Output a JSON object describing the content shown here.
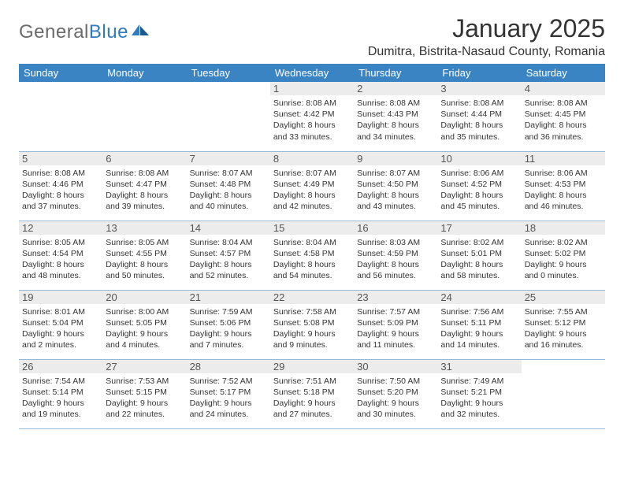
{
  "logo": {
    "text1": "General",
    "text2": "Blue"
  },
  "title": "January 2025",
  "location": "Dumitra, Bistrita-Nasaud County, Romania",
  "colors": {
    "header_bg": "#3b84c4",
    "header_text": "#ffffff",
    "grid_line": "#93b9d9",
    "daynum_bg": "#ececec",
    "daynum_text": "#555555",
    "body_text": "#333333",
    "logo_gray": "#6a6a6a",
    "logo_blue": "#2f7ac0"
  },
  "weekdays": [
    "Sunday",
    "Monday",
    "Tuesday",
    "Wednesday",
    "Thursday",
    "Friday",
    "Saturday"
  ],
  "weeks": [
    [
      {
        "day": "",
        "sunrise": "",
        "sunset": "",
        "daylight_l1": "",
        "daylight_l2": ""
      },
      {
        "day": "",
        "sunrise": "",
        "sunset": "",
        "daylight_l1": "",
        "daylight_l2": ""
      },
      {
        "day": "",
        "sunrise": "",
        "sunset": "",
        "daylight_l1": "",
        "daylight_l2": ""
      },
      {
        "day": "1",
        "sunrise": "Sunrise: 8:08 AM",
        "sunset": "Sunset: 4:42 PM",
        "daylight_l1": "Daylight: 8 hours",
        "daylight_l2": "and 33 minutes."
      },
      {
        "day": "2",
        "sunrise": "Sunrise: 8:08 AM",
        "sunset": "Sunset: 4:43 PM",
        "daylight_l1": "Daylight: 8 hours",
        "daylight_l2": "and 34 minutes."
      },
      {
        "day": "3",
        "sunrise": "Sunrise: 8:08 AM",
        "sunset": "Sunset: 4:44 PM",
        "daylight_l1": "Daylight: 8 hours",
        "daylight_l2": "and 35 minutes."
      },
      {
        "day": "4",
        "sunrise": "Sunrise: 8:08 AM",
        "sunset": "Sunset: 4:45 PM",
        "daylight_l1": "Daylight: 8 hours",
        "daylight_l2": "and 36 minutes."
      }
    ],
    [
      {
        "day": "5",
        "sunrise": "Sunrise: 8:08 AM",
        "sunset": "Sunset: 4:46 PM",
        "daylight_l1": "Daylight: 8 hours",
        "daylight_l2": "and 37 minutes."
      },
      {
        "day": "6",
        "sunrise": "Sunrise: 8:08 AM",
        "sunset": "Sunset: 4:47 PM",
        "daylight_l1": "Daylight: 8 hours",
        "daylight_l2": "and 39 minutes."
      },
      {
        "day": "7",
        "sunrise": "Sunrise: 8:07 AM",
        "sunset": "Sunset: 4:48 PM",
        "daylight_l1": "Daylight: 8 hours",
        "daylight_l2": "and 40 minutes."
      },
      {
        "day": "8",
        "sunrise": "Sunrise: 8:07 AM",
        "sunset": "Sunset: 4:49 PM",
        "daylight_l1": "Daylight: 8 hours",
        "daylight_l2": "and 42 minutes."
      },
      {
        "day": "9",
        "sunrise": "Sunrise: 8:07 AM",
        "sunset": "Sunset: 4:50 PM",
        "daylight_l1": "Daylight: 8 hours",
        "daylight_l2": "and 43 minutes."
      },
      {
        "day": "10",
        "sunrise": "Sunrise: 8:06 AM",
        "sunset": "Sunset: 4:52 PM",
        "daylight_l1": "Daylight: 8 hours",
        "daylight_l2": "and 45 minutes."
      },
      {
        "day": "11",
        "sunrise": "Sunrise: 8:06 AM",
        "sunset": "Sunset: 4:53 PM",
        "daylight_l1": "Daylight: 8 hours",
        "daylight_l2": "and 46 minutes."
      }
    ],
    [
      {
        "day": "12",
        "sunrise": "Sunrise: 8:05 AM",
        "sunset": "Sunset: 4:54 PM",
        "daylight_l1": "Daylight: 8 hours",
        "daylight_l2": "and 48 minutes."
      },
      {
        "day": "13",
        "sunrise": "Sunrise: 8:05 AM",
        "sunset": "Sunset: 4:55 PM",
        "daylight_l1": "Daylight: 8 hours",
        "daylight_l2": "and 50 minutes."
      },
      {
        "day": "14",
        "sunrise": "Sunrise: 8:04 AM",
        "sunset": "Sunset: 4:57 PM",
        "daylight_l1": "Daylight: 8 hours",
        "daylight_l2": "and 52 minutes."
      },
      {
        "day": "15",
        "sunrise": "Sunrise: 8:04 AM",
        "sunset": "Sunset: 4:58 PM",
        "daylight_l1": "Daylight: 8 hours",
        "daylight_l2": "and 54 minutes."
      },
      {
        "day": "16",
        "sunrise": "Sunrise: 8:03 AM",
        "sunset": "Sunset: 4:59 PM",
        "daylight_l1": "Daylight: 8 hours",
        "daylight_l2": "and 56 minutes."
      },
      {
        "day": "17",
        "sunrise": "Sunrise: 8:02 AM",
        "sunset": "Sunset: 5:01 PM",
        "daylight_l1": "Daylight: 8 hours",
        "daylight_l2": "and 58 minutes."
      },
      {
        "day": "18",
        "sunrise": "Sunrise: 8:02 AM",
        "sunset": "Sunset: 5:02 PM",
        "daylight_l1": "Daylight: 9 hours",
        "daylight_l2": "and 0 minutes."
      }
    ],
    [
      {
        "day": "19",
        "sunrise": "Sunrise: 8:01 AM",
        "sunset": "Sunset: 5:04 PM",
        "daylight_l1": "Daylight: 9 hours",
        "daylight_l2": "and 2 minutes."
      },
      {
        "day": "20",
        "sunrise": "Sunrise: 8:00 AM",
        "sunset": "Sunset: 5:05 PM",
        "daylight_l1": "Daylight: 9 hours",
        "daylight_l2": "and 4 minutes."
      },
      {
        "day": "21",
        "sunrise": "Sunrise: 7:59 AM",
        "sunset": "Sunset: 5:06 PM",
        "daylight_l1": "Daylight: 9 hours",
        "daylight_l2": "and 7 minutes."
      },
      {
        "day": "22",
        "sunrise": "Sunrise: 7:58 AM",
        "sunset": "Sunset: 5:08 PM",
        "daylight_l1": "Daylight: 9 hours",
        "daylight_l2": "and 9 minutes."
      },
      {
        "day": "23",
        "sunrise": "Sunrise: 7:57 AM",
        "sunset": "Sunset: 5:09 PM",
        "daylight_l1": "Daylight: 9 hours",
        "daylight_l2": "and 11 minutes."
      },
      {
        "day": "24",
        "sunrise": "Sunrise: 7:56 AM",
        "sunset": "Sunset: 5:11 PM",
        "daylight_l1": "Daylight: 9 hours",
        "daylight_l2": "and 14 minutes."
      },
      {
        "day": "25",
        "sunrise": "Sunrise: 7:55 AM",
        "sunset": "Sunset: 5:12 PM",
        "daylight_l1": "Daylight: 9 hours",
        "daylight_l2": "and 16 minutes."
      }
    ],
    [
      {
        "day": "26",
        "sunrise": "Sunrise: 7:54 AM",
        "sunset": "Sunset: 5:14 PM",
        "daylight_l1": "Daylight: 9 hours",
        "daylight_l2": "and 19 minutes."
      },
      {
        "day": "27",
        "sunrise": "Sunrise: 7:53 AM",
        "sunset": "Sunset: 5:15 PM",
        "daylight_l1": "Daylight: 9 hours",
        "daylight_l2": "and 22 minutes."
      },
      {
        "day": "28",
        "sunrise": "Sunrise: 7:52 AM",
        "sunset": "Sunset: 5:17 PM",
        "daylight_l1": "Daylight: 9 hours",
        "daylight_l2": "and 24 minutes."
      },
      {
        "day": "29",
        "sunrise": "Sunrise: 7:51 AM",
        "sunset": "Sunset: 5:18 PM",
        "daylight_l1": "Daylight: 9 hours",
        "daylight_l2": "and 27 minutes."
      },
      {
        "day": "30",
        "sunrise": "Sunrise: 7:50 AM",
        "sunset": "Sunset: 5:20 PM",
        "daylight_l1": "Daylight: 9 hours",
        "daylight_l2": "and 30 minutes."
      },
      {
        "day": "31",
        "sunrise": "Sunrise: 7:49 AM",
        "sunset": "Sunset: 5:21 PM",
        "daylight_l1": "Daylight: 9 hours",
        "daylight_l2": "and 32 minutes."
      },
      {
        "day": "",
        "sunrise": "",
        "sunset": "",
        "daylight_l1": "",
        "daylight_l2": ""
      }
    ]
  ]
}
